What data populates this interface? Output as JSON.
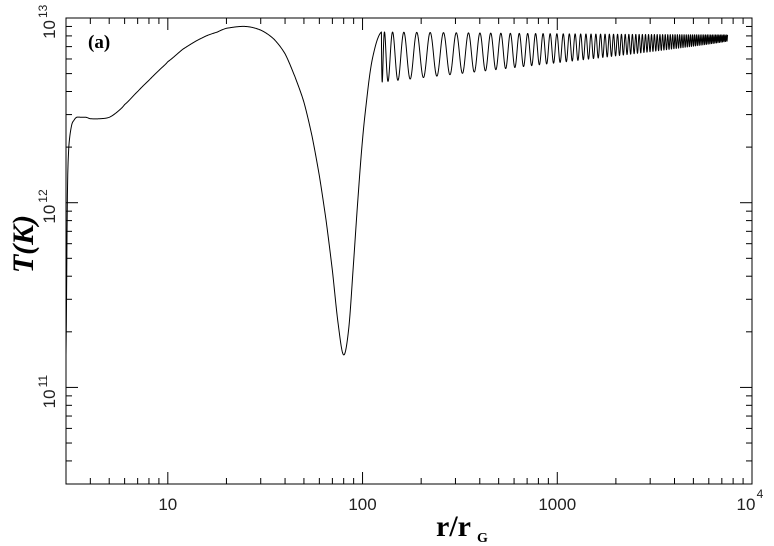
{
  "chart_data": {
    "type": "line",
    "panel_label": "(a)",
    "xlabel": "r/r",
    "xlabel_sub": "G",
    "ylabel": "T(K)",
    "x_scale": "log",
    "y_scale": "log",
    "xlim": [
      3,
      10000
    ],
    "ylim": [
      30000000000,
      10000000000000
    ],
    "x_ticks": [
      {
        "value": 10,
        "label": "10",
        "exp": ""
      },
      {
        "value": 100,
        "label": "100",
        "exp": ""
      },
      {
        "value": 1000,
        "label": "1000",
        "exp": ""
      },
      {
        "value": 10000,
        "label": "10",
        "exp": "4"
      }
    ],
    "y_ticks": [
      {
        "value": 100000000000,
        "label": "10",
        "exp": "11"
      },
      {
        "value": 1000000000000,
        "label": "10",
        "exp": "12"
      },
      {
        "value": 10000000000000,
        "label": "10",
        "exp": "13"
      }
    ],
    "grid": false,
    "series": [
      {
        "x": [
          3.0,
          3.05,
          3.1,
          3.2,
          3.3,
          3.4,
          3.6,
          3.8,
          4.0,
          4.5,
          5.0,
          5.5,
          6.0,
          7.0,
          8.0,
          9.0,
          10.0,
          12.0,
          15.0,
          18.0,
          20.0,
          25.0,
          30.0,
          35.0,
          40.0,
          45.0,
          50.0,
          55.0,
          60.0,
          65.0,
          70.0,
          75.0,
          80.0,
          85.0,
          90.0,
          95.0,
          100.0,
          105.0,
          110.0,
          115.0,
          120.0,
          125.0
        ],
        "y": [
          150000000000,
          1100000000000,
          2000000000000,
          2600000000000,
          2800000000000,
          2900000000000,
          2900000000000,
          2900000000000,
          2850000000000,
          2850000000000,
          2900000000000,
          3100000000000,
          3400000000000,
          4000000000000,
          4600000000000,
          5200000000000,
          5800000000000,
          6800000000000,
          7800000000000,
          8400000000000,
          8800000000000,
          9000000000000,
          8600000000000,
          7700000000000,
          6400000000000,
          4800000000000,
          3500000000000,
          2300000000000,
          1400000000000,
          800000000000,
          430000000000,
          220000000000,
          150000000000,
          210000000000,
          480000000000,
          1100000000000,
          2200000000000,
          3600000000000,
          5300000000000,
          6700000000000,
          7800000000000,
          8400000000000
        ]
      }
    ],
    "oscillation": {
      "start_r": 125,
      "end_r": 7500,
      "cycles": 78,
      "first_trough": 4500000000000,
      "first_peak": 8400000000000,
      "final_trough": 7500000000000,
      "final_peak": 8100000000000
    }
  }
}
